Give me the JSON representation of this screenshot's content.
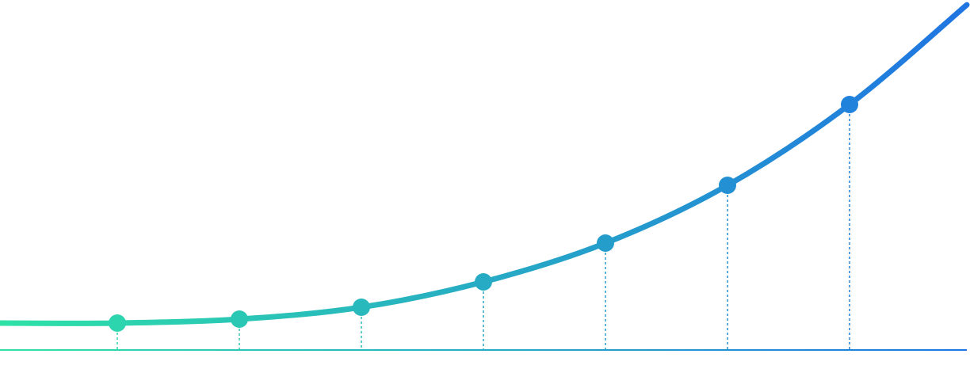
{
  "chart_data": {
    "type": "line",
    "categories": [
      null,
      null,
      null,
      null,
      null,
      null,
      null
    ],
    "values": [
      34,
      39,
      54,
      86,
      135,
      208,
      310
    ],
    "ylim": [
      0,
      440
    ],
    "colors": [
      "#2ee2a6",
      "#1f74e2"
    ],
    "markers": true,
    "drop_lines": true
  }
}
